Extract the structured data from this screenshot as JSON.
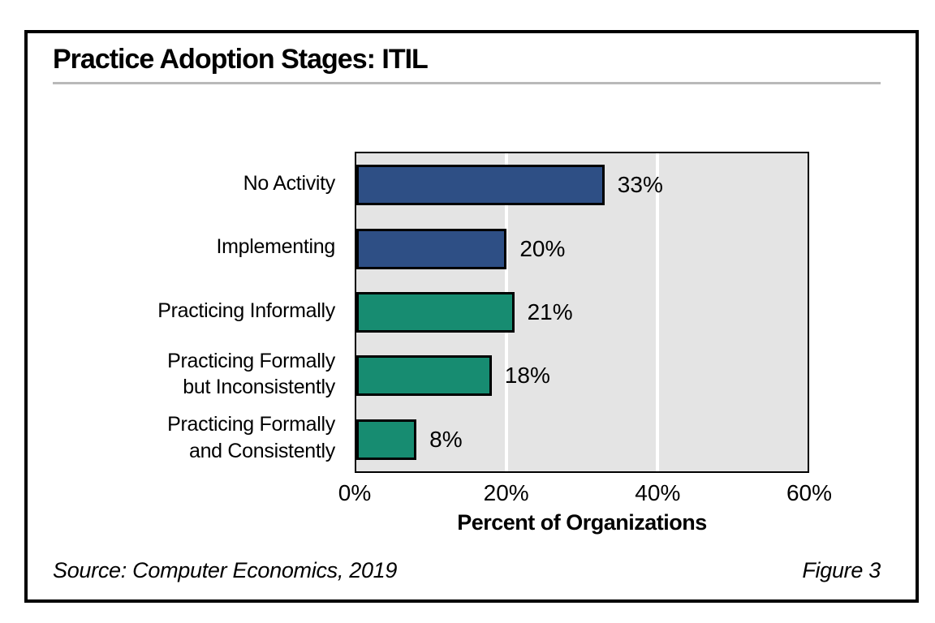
{
  "figure": {
    "title": "Practice Adoption Stages: ITIL",
    "source": "Source: Computer Economics, 2019",
    "figure_label": "Figure 3"
  },
  "chart_data": {
    "type": "bar",
    "orientation": "horizontal",
    "title": "Practice Adoption Stages: ITIL",
    "categories": [
      "No Activity",
      "Implementing",
      "Practicing Informally",
      "Practicing Formally\nbut Inconsistently",
      "Practicing Formally\nand Consistently"
    ],
    "values": [
      33,
      20,
      21,
      18,
      8
    ],
    "value_labels": [
      "33%",
      "20%",
      "21%",
      "18%",
      "8%"
    ],
    "bar_colors": [
      "#2E4F85",
      "#2E4F85",
      "#178C71",
      "#178C71",
      "#178C71"
    ],
    "xlabel": "Percent of Organizations",
    "ylabel": "",
    "xlim": [
      0,
      60
    ],
    "xticks": [
      0,
      20,
      40,
      60
    ],
    "xtick_labels": [
      "0%",
      "20%",
      "40%",
      "60%"
    ],
    "grid": "vertical white gridlines at 20% and 40%",
    "legend": "none",
    "plot_bg": "#E4E4E4"
  }
}
